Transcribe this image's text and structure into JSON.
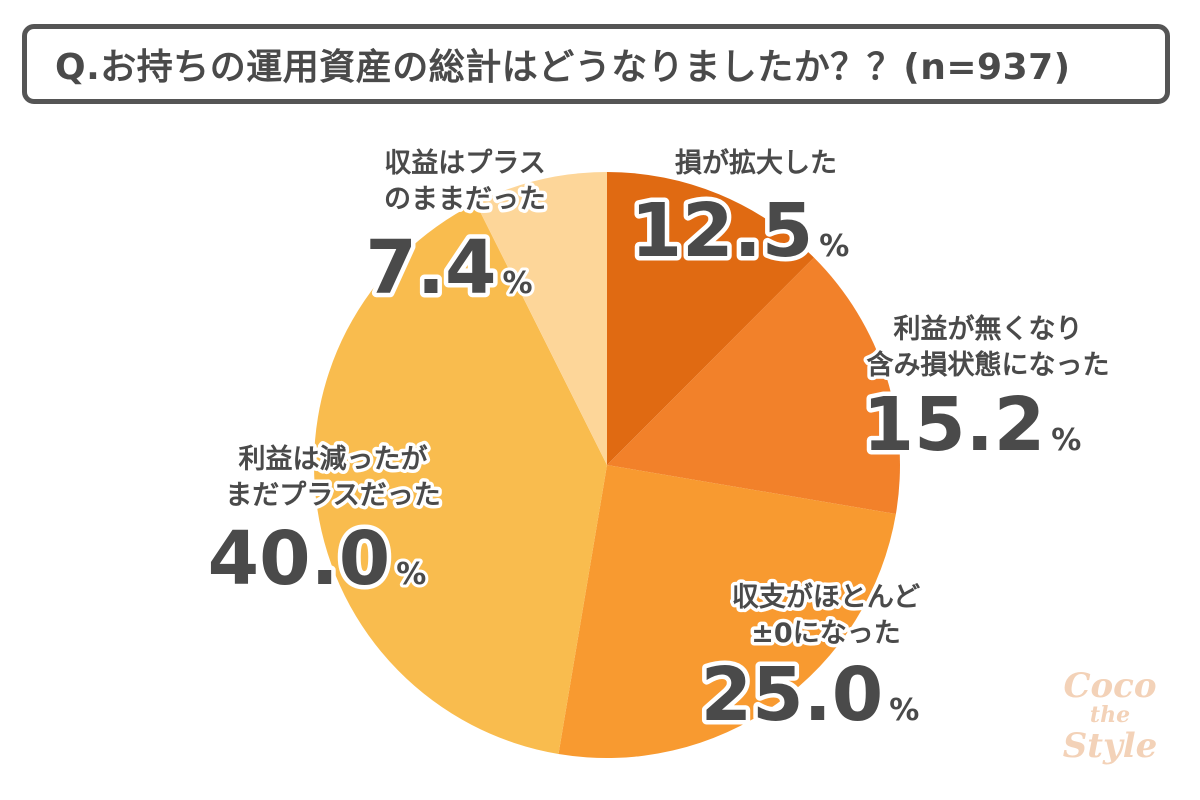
{
  "title": "Q.お持ちの運用資産の総計はどうなりましたか？？(n=937)",
  "watermark": {
    "line1": "Coco",
    "line2": "the",
    "line3": "Style"
  },
  "chart_data": {
    "type": "pie",
    "unit": "%",
    "slices": [
      {
        "label_lines": [
          "損が拡大した"
        ],
        "value": 12.5,
        "value_text": "12.5",
        "color": "#e06a12"
      },
      {
        "label_lines": [
          "利益が無くなり",
          "含み損状態になった"
        ],
        "value": 15.2,
        "value_text": "15.2",
        "color": "#f2812a"
      },
      {
        "label_lines": [
          "収支がほとんど",
          "±0になった"
        ],
        "value": 25.0,
        "value_text": "25.0",
        "color": "#f89a30"
      },
      {
        "label_lines": [
          "利益は減ったが",
          "まだプラスだった"
        ],
        "value": 40.0,
        "value_text": "40.0",
        "color": "#f9bc4e"
      },
      {
        "label_lines": [
          "収益はプラス",
          "のままだった"
        ],
        "value": 7.4,
        "value_text": "7.4",
        "color": "#fdd699"
      }
    ]
  }
}
